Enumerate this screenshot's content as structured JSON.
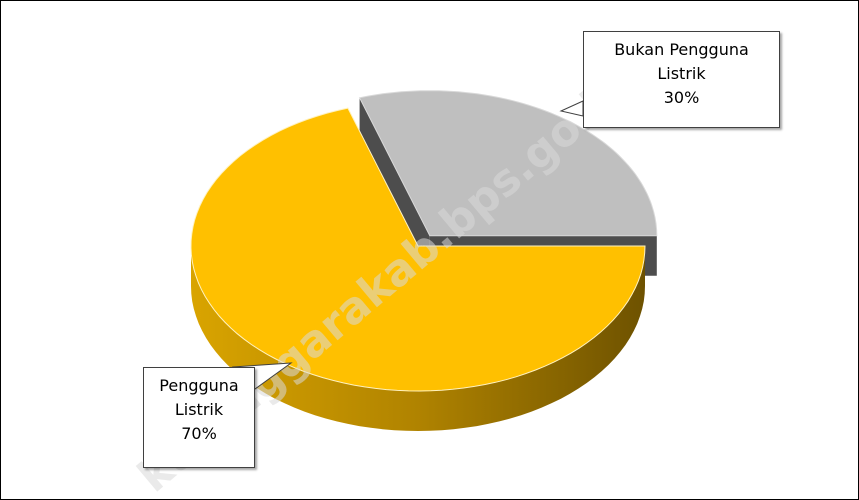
{
  "chart_data": {
    "type": "pie3d",
    "categories": [
      "Pengguna Listrik",
      "Bukan Pengguna Listrik"
    ],
    "values": [
      70,
      30
    ],
    "value_labels": [
      "70%",
      "30%"
    ],
    "colors": [
      "#ffc000",
      "#bfbfbf"
    ],
    "exploded": [
      false,
      true
    ],
    "watermark": "kutenggarakab.bps.go.id"
  }
}
